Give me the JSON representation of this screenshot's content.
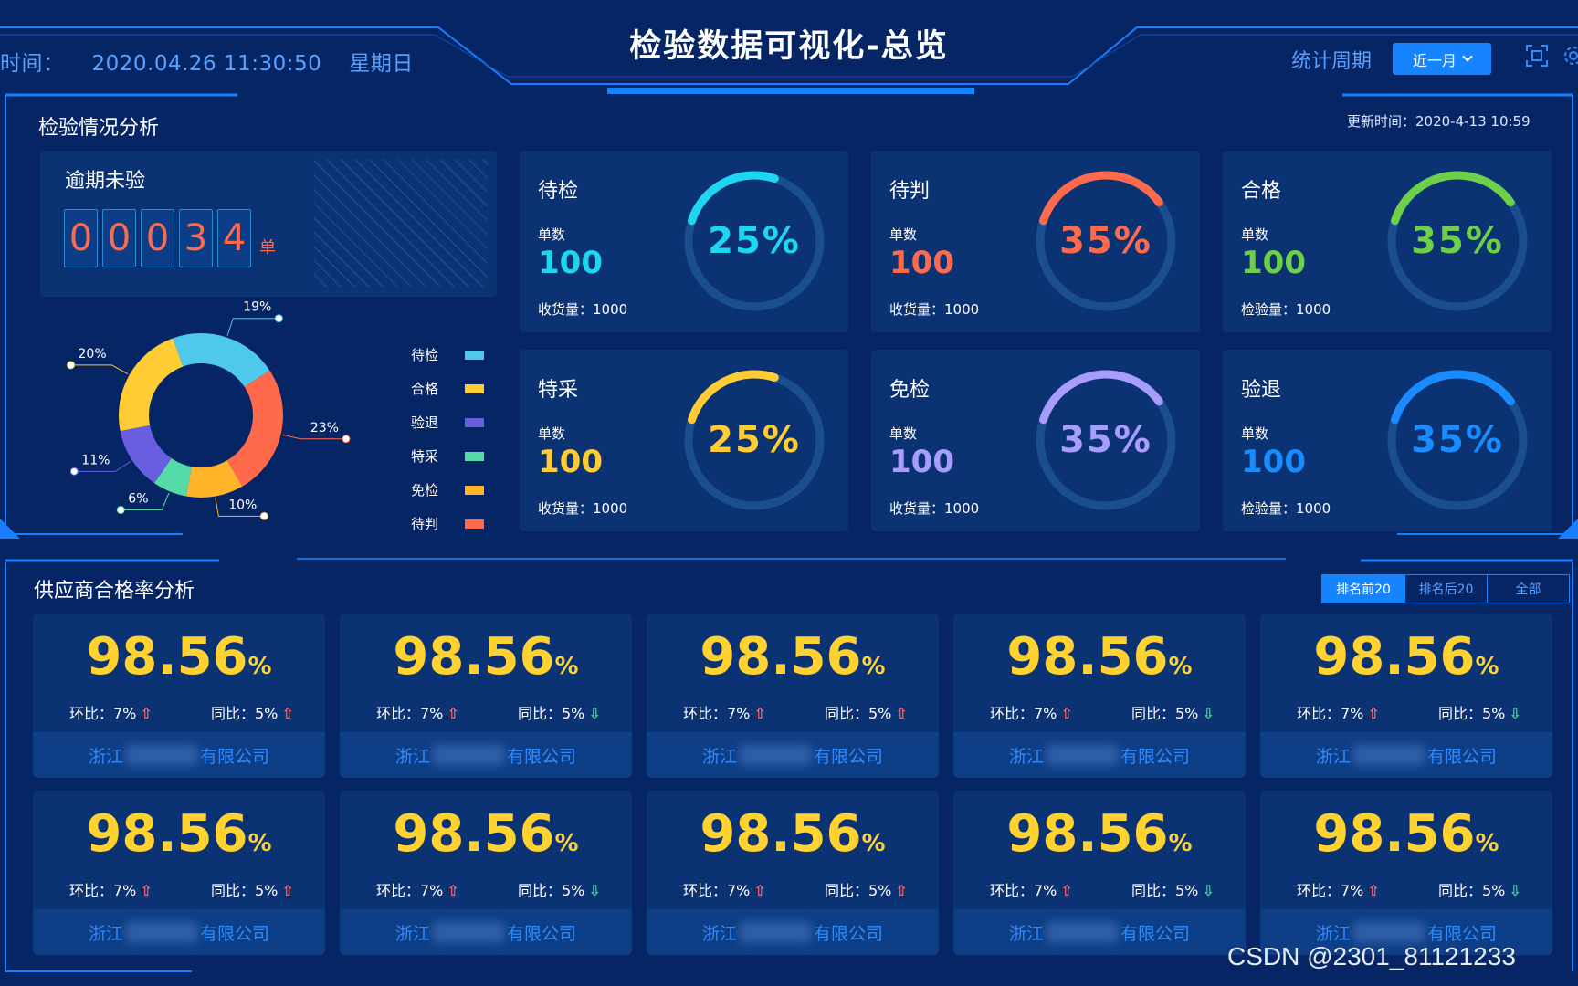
{
  "header": {
    "time_label": "时间：",
    "time_value": "2020.04.26  11:30:50",
    "weekday": "星期日",
    "title": "检验数据可视化-总览",
    "period_label": "统计周期",
    "period_select": "近一月",
    "icons": [
      "screen-fit-icon",
      "settings-icon"
    ]
  },
  "inspection": {
    "title": "检验情况分析",
    "updated_at": "更新时间：2020-4-13  10:59",
    "overdue": {
      "label": "逾期未验",
      "digits": [
        "0",
        "0",
        "0",
        "3",
        "4"
      ],
      "unit": "单"
    },
    "donut": {
      "segments": [
        {
          "name": "待检",
          "percent": 19,
          "color": "#4fc8ee",
          "label": "19%"
        },
        {
          "name": "待判",
          "percent": 23,
          "color": "#ff6a4d",
          "label": "23%"
        },
        {
          "name": "免检",
          "percent": 10,
          "color": "#ffb42a",
          "label": "10%"
        },
        {
          "name": "特采",
          "percent": 6,
          "color": "#55dbaa",
          "label": "6%"
        },
        {
          "name": "验退",
          "percent": 11,
          "color": "#6a5ee0",
          "label": "11%"
        },
        {
          "name": "合格",
          "percent": 20,
          "color": "#ffcc33",
          "label": "20%"
        }
      ]
    },
    "legend": [
      {
        "name": "待检",
        "color": "#4fc8ee"
      },
      {
        "name": "合格",
        "color": "#ffcc33"
      },
      {
        "name": "验退",
        "color": "#6a5ee0"
      },
      {
        "name": "特采",
        "color": "#55dbaa"
      },
      {
        "name": "免检",
        "color": "#ffb42a"
      },
      {
        "name": "待判",
        "color": "#ff6a4d"
      }
    ],
    "cards": [
      {
        "name": "待检",
        "count_label": "单数",
        "count": "100",
        "foot": "收货量：1000",
        "percent": 25,
        "percent_label": "25%",
        "color": "#1ed6f2"
      },
      {
        "name": "待判",
        "count_label": "单数",
        "count": "100",
        "foot": "收货量：1000",
        "percent": 35,
        "percent_label": "35%",
        "color": "#ff6a4d"
      },
      {
        "name": "合格",
        "count_label": "单数",
        "count": "100",
        "foot": "检验量：1000",
        "percent": 35,
        "percent_label": "35%",
        "color": "#6ed04a"
      },
      {
        "name": "特采",
        "count_label": "单数",
        "count": "100",
        "foot": "收货量：1000",
        "percent": 25,
        "percent_label": "25%",
        "color": "#ffcc33"
      },
      {
        "name": "免检",
        "count_label": "单数",
        "count": "100",
        "foot": "收货量：1000",
        "percent": 35,
        "percent_label": "35%",
        "color": "#a89cff"
      },
      {
        "name": "验退",
        "count_label": "单数",
        "count": "100",
        "foot": "检验量：1000",
        "percent": 35,
        "percent_label": "35%",
        "color": "#1a8cff"
      }
    ]
  },
  "supplier": {
    "title": "供应商合格率分析",
    "tabs": [
      "排名前20",
      "排名后20",
      "全部"
    ],
    "active_tab": 0,
    "cards": [
      {
        "rate": "98.56",
        "unit": "%",
        "mom": "环比：7%",
        "mom_dir": "up",
        "yoy": "同比：5%",
        "yoy_dir": "up",
        "company_prefix": "浙江",
        "company_suffix": "有限公司"
      },
      {
        "rate": "98.56",
        "unit": "%",
        "mom": "环比：7%",
        "mom_dir": "up",
        "yoy": "同比：5%",
        "yoy_dir": "down",
        "company_prefix": "浙江",
        "company_suffix": "有限公司"
      },
      {
        "rate": "98.56",
        "unit": "%",
        "mom": "环比：7%",
        "mom_dir": "up",
        "yoy": "同比：5%",
        "yoy_dir": "up",
        "company_prefix": "浙江",
        "company_suffix": "有限公司"
      },
      {
        "rate": "98.56",
        "unit": "%",
        "mom": "环比：7%",
        "mom_dir": "up",
        "yoy": "同比：5%",
        "yoy_dir": "down",
        "company_prefix": "浙江",
        "company_suffix": "有限公司"
      },
      {
        "rate": "98.56",
        "unit": "%",
        "mom": "环比：7%",
        "mom_dir": "up",
        "yoy": "同比：5%",
        "yoy_dir": "down",
        "company_prefix": "浙江",
        "company_suffix": "有限公司"
      },
      {
        "rate": "98.56",
        "unit": "%",
        "mom": "环比：7%",
        "mom_dir": "up",
        "yoy": "同比：5%",
        "yoy_dir": "up",
        "company_prefix": "浙江",
        "company_suffix": "有限公司"
      },
      {
        "rate": "98.56",
        "unit": "%",
        "mom": "环比：7%",
        "mom_dir": "up",
        "yoy": "同比：5%",
        "yoy_dir": "down",
        "company_prefix": "浙江",
        "company_suffix": "有限公司"
      },
      {
        "rate": "98.56",
        "unit": "%",
        "mom": "环比：7%",
        "mom_dir": "up",
        "yoy": "同比：5%",
        "yoy_dir": "up",
        "company_prefix": "浙江",
        "company_suffix": "有限公司"
      },
      {
        "rate": "98.56",
        "unit": "%",
        "mom": "环比：7%",
        "mom_dir": "up",
        "yoy": "同比：5%",
        "yoy_dir": "down",
        "company_prefix": "浙江",
        "company_suffix": "有限公司"
      },
      {
        "rate": "98.56",
        "unit": "%",
        "mom": "环比：7%",
        "mom_dir": "up",
        "yoy": "同比：5%",
        "yoy_dir": "down",
        "company_prefix": "浙江",
        "company_suffix": "有限公司"
      }
    ]
  },
  "watermark": "CSDN @2301_81121233"
}
